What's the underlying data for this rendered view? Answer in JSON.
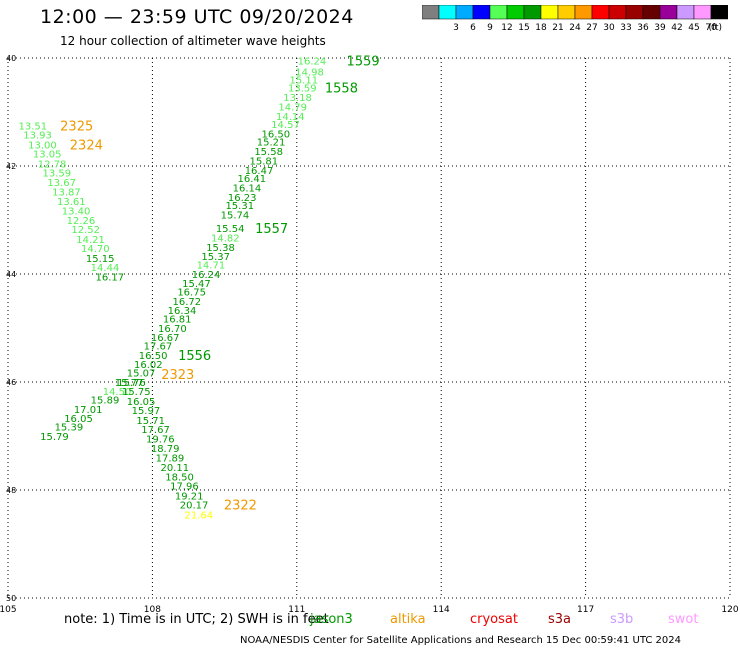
{
  "header": {
    "title": "12:00 — 23:59 UTC 09/20/2024",
    "subtitle": "12 hour collection of altimeter wave heights"
  },
  "legend": {
    "unit": "(ft)",
    "bins": [
      {
        "label": "",
        "color": "#7f7f7f"
      },
      {
        "label": "3",
        "color": "#00ffff"
      },
      {
        "label": "6",
        "color": "#00aaff"
      },
      {
        "label": "9",
        "color": "#0000ff"
      },
      {
        "label": "12",
        "color": "#55ff55"
      },
      {
        "label": "15",
        "color": "#00cc00"
      },
      {
        "label": "18",
        "color": "#009900"
      },
      {
        "label": "21",
        "color": "#ffff00"
      },
      {
        "label": "24",
        "color": "#ffcc00"
      },
      {
        "label": "27",
        "color": "#ff9900"
      },
      {
        "label": "30",
        "color": "#ff0000"
      },
      {
        "label": "33",
        "color": "#cc0000"
      },
      {
        "label": "36",
        "color": "#990000"
      },
      {
        "label": "39",
        "color": "#660000"
      },
      {
        "label": "42",
        "color": "#990099"
      },
      {
        "label": "45",
        "color": "#cc99ff"
      },
      {
        "label": "70",
        "color": "#ff99ff"
      },
      {
        "label": "",
        "color": "#000000"
      }
    ]
  },
  "axes": {
    "lon_labels": [
      "105",
      "108",
      "111",
      "114",
      "117",
      "120"
    ],
    "lat_labels": [
      "40",
      "42",
      "44",
      "46",
      "48",
      "50"
    ],
    "lon_range": [
      105,
      120
    ],
    "lat_range": [
      -40,
      -50
    ]
  },
  "colors": {
    "green_light": "#55ee55",
    "green_dark": "#009900",
    "orange": "#ee9900",
    "yellow": "#ffff00"
  },
  "tracks": [
    {
      "name": "1559",
      "label_lon": 112.2,
      "label_lat": -40.05,
      "color_key": "green_dark",
      "points": [
        {
          "lon": 111.35,
          "lat": -40.05,
          "v": "16.24",
          "c": "green_light"
        },
        {
          "lon": 111.3,
          "lat": -40.25,
          "v": "14.98",
          "c": "green_light"
        },
        {
          "lon": 111.18,
          "lat": -40.4,
          "v": "15.11",
          "c": "green_light"
        }
      ]
    },
    {
      "name": "1558",
      "label_lon": 111.75,
      "label_lat": -40.55,
      "color_key": "green_dark",
      "points": [
        {
          "lon": 111.15,
          "lat": -40.55,
          "v": "13.59",
          "c": "green_light"
        },
        {
          "lon": 111.05,
          "lat": -40.72,
          "v": "13.18",
          "c": "green_light"
        },
        {
          "lon": 110.95,
          "lat": -40.9,
          "v": "14.79",
          "c": "green_light"
        },
        {
          "lon": 110.9,
          "lat": -41.07,
          "v": "14.14",
          "c": "green_light"
        },
        {
          "lon": 110.8,
          "lat": -41.22,
          "v": "14.57",
          "c": "green_light"
        },
        {
          "lon": 110.6,
          "lat": -41.4,
          "v": "16.50",
          "c": "green_dark"
        },
        {
          "lon": 110.5,
          "lat": -41.55,
          "v": "15.21",
          "c": "green_dark"
        },
        {
          "lon": 110.45,
          "lat": -41.72,
          "v": "15.58",
          "c": "green_dark"
        },
        {
          "lon": 110.35,
          "lat": -41.9,
          "v": "15.81",
          "c": "green_dark"
        },
        {
          "lon": 110.25,
          "lat": -42.07,
          "v": "16.47",
          "c": "green_dark"
        },
        {
          "lon": 110.1,
          "lat": -42.22,
          "v": "16.41",
          "c": "green_dark"
        },
        {
          "lon": 110.0,
          "lat": -42.4,
          "v": "16.14",
          "c": "green_dark"
        },
        {
          "lon": 109.9,
          "lat": -42.57,
          "v": "16.23",
          "c": "green_dark"
        },
        {
          "lon": 109.85,
          "lat": -42.72,
          "v": "15.31",
          "c": "green_dark"
        },
        {
          "lon": 109.75,
          "lat": -42.9,
          "v": "15.74",
          "c": "green_dark"
        }
      ]
    },
    {
      "name": "1557",
      "label_lon": 110.3,
      "label_lat": -43.15,
      "color_key": "green_dark",
      "points": [
        {
          "lon": 109.65,
          "lat": -43.15,
          "v": "15.54",
          "c": "green_dark"
        },
        {
          "lon": 109.55,
          "lat": -43.32,
          "v": "14.82",
          "c": "green_light"
        },
        {
          "lon": 109.45,
          "lat": -43.5,
          "v": "15.38",
          "c": "green_dark"
        },
        {
          "lon": 109.35,
          "lat": -43.67,
          "v": "15.37",
          "c": "green_dark"
        },
        {
          "lon": 109.25,
          "lat": -43.82,
          "v": "14.71",
          "c": "green_light"
        },
        {
          "lon": 109.15,
          "lat": -44.0,
          "v": "16.24",
          "c": "green_dark"
        },
        {
          "lon": 108.95,
          "lat": -44.17,
          "v": "15.47",
          "c": "green_dark"
        },
        {
          "lon": 108.85,
          "lat": -44.32,
          "v": "16.75",
          "c": "green_dark"
        },
        {
          "lon": 108.75,
          "lat": -44.5,
          "v": "16.72",
          "c": "green_dark"
        },
        {
          "lon": 108.65,
          "lat": -44.67,
          "v": "16.34",
          "c": "green_dark"
        },
        {
          "lon": 108.55,
          "lat": -44.82,
          "v": "16.81",
          "c": "green_dark"
        },
        {
          "lon": 108.45,
          "lat": -45.0,
          "v": "16.70",
          "c": "green_dark"
        },
        {
          "lon": 108.3,
          "lat": -45.17,
          "v": "16.67",
          "c": "green_dark"
        },
        {
          "lon": 108.15,
          "lat": -45.32,
          "v": "17.67",
          "c": "green_dark"
        }
      ]
    },
    {
      "name": "1556",
      "label_lon": 108.7,
      "label_lat": -45.5,
      "color_key": "green_dark",
      "points": [
        {
          "lon": 108.05,
          "lat": -45.5,
          "v": "16.50",
          "c": "green_dark"
        },
        {
          "lon": 107.95,
          "lat": -45.67,
          "v": "16.02",
          "c": "green_dark"
        },
        {
          "lon": 107.8,
          "lat": -45.82,
          "v": "15.07",
          "c": "green_dark"
        },
        {
          "lon": 107.55,
          "lat": -46.0,
          "v": "15.77",
          "c": "green_dark"
        },
        {
          "lon": 107.3,
          "lat": -46.17,
          "v": "14.50",
          "c": "green_light"
        },
        {
          "lon": 107.05,
          "lat": -46.32,
          "v": "15.89",
          "c": "green_dark"
        },
        {
          "lon": 106.7,
          "lat": -46.5,
          "v": "17.01",
          "c": "green_dark"
        },
        {
          "lon": 106.5,
          "lat": -46.67,
          "v": "16.05",
          "c": "green_dark"
        },
        {
          "lon": 106.3,
          "lat": -46.82,
          "v": "15.39",
          "c": "green_dark"
        },
        {
          "lon": 106.0,
          "lat": -47.0,
          "v": "15.79",
          "c": "green_dark"
        }
      ]
    },
    {
      "name": "2325",
      "label_lon": 106.25,
      "label_lat": -41.25,
      "color_key": "orange",
      "points": [
        {
          "lon": 105.55,
          "lat": -41.25,
          "v": "13.51",
          "c": "green_light"
        },
        {
          "lon": 105.65,
          "lat": -41.42,
          "v": "13.93",
          "c": "green_light"
        },
        {
          "lon": 105.75,
          "lat": -41.6,
          "v": "13.00",
          "c": "green_light"
        }
      ]
    },
    {
      "name": "2324",
      "label_lon": 106.45,
      "label_lat": -41.6,
      "color_key": "orange",
      "points": [
        {
          "lon": 105.85,
          "lat": -41.77,
          "v": "13.05",
          "c": "green_light"
        },
        {
          "lon": 105.95,
          "lat": -41.95,
          "v": "12.78",
          "c": "green_light"
        },
        {
          "lon": 106.05,
          "lat": -42.12,
          "v": "13.59",
          "c": "green_light"
        },
        {
          "lon": 106.15,
          "lat": -42.3,
          "v": "13.67",
          "c": "green_light"
        },
        {
          "lon": 106.25,
          "lat": -42.47,
          "v": "13.87",
          "c": "green_light"
        },
        {
          "lon": 106.35,
          "lat": -42.65,
          "v": "13.61",
          "c": "green_light"
        },
        {
          "lon": 106.45,
          "lat": -42.82,
          "v": "13.40",
          "c": "green_light"
        },
        {
          "lon": 106.55,
          "lat": -43.0,
          "v": "12.26",
          "c": "green_light"
        },
        {
          "lon": 106.65,
          "lat": -43.17,
          "v": "12.52",
          "c": "green_light"
        },
        {
          "lon": 106.75,
          "lat": -43.35,
          "v": "14.21",
          "c": "green_light"
        },
        {
          "lon": 106.85,
          "lat": -43.52,
          "v": "14.70",
          "c": "green_light"
        },
        {
          "lon": 106.95,
          "lat": -43.7,
          "v": "15.15",
          "c": "green_dark"
        },
        {
          "lon": 107.05,
          "lat": -43.87,
          "v": "14.44",
          "c": "green_light"
        },
        {
          "lon": 107.15,
          "lat": -44.05,
          "v": "16.17",
          "c": "green_dark"
        }
      ]
    },
    {
      "name": "2323",
      "label_lon": 108.35,
      "label_lat": -45.85,
      "color_key": "orange",
      "points": [
        {
          "lon": 107.6,
          "lat": -46.0,
          "v": "15.76",
          "c": "green_dark"
        },
        {
          "lon": 107.7,
          "lat": -46.17,
          "v": "15.75",
          "c": "green_dark"
        },
        {
          "lon": 107.8,
          "lat": -46.35,
          "v": "16.05",
          "c": "green_dark"
        },
        {
          "lon": 107.9,
          "lat": -46.52,
          "v": "15.97",
          "c": "green_dark"
        },
        {
          "lon": 108.0,
          "lat": -46.7,
          "v": "15.71",
          "c": "green_dark"
        },
        {
          "lon": 108.1,
          "lat": -46.87,
          "v": "17.67",
          "c": "green_dark"
        },
        {
          "lon": 108.2,
          "lat": -47.05,
          "v": "19.76",
          "c": "green_dark"
        },
        {
          "lon": 108.3,
          "lat": -47.22,
          "v": "18.79",
          "c": "green_dark"
        },
        {
          "lon": 108.4,
          "lat": -47.4,
          "v": "17.89",
          "c": "green_dark"
        },
        {
          "lon": 108.5,
          "lat": -47.57,
          "v": "20.11",
          "c": "green_dark"
        },
        {
          "lon": 108.6,
          "lat": -47.75,
          "v": "18.50",
          "c": "green_dark"
        },
        {
          "lon": 108.7,
          "lat": -47.92,
          "v": "17.96",
          "c": "green_dark"
        },
        {
          "lon": 108.8,
          "lat": -48.1,
          "v": "19.21",
          "c": "green_dark"
        },
        {
          "lon": 108.9,
          "lat": -48.27,
          "v": "20.17",
          "c": "green_dark"
        }
      ]
    },
    {
      "name": "2322",
      "label_lon": 109.65,
      "label_lat": -48.27,
      "color_key": "orange",
      "points": [
        {
          "lon": 109.0,
          "lat": -48.45,
          "v": "21.64",
          "c": "yellow"
        }
      ]
    }
  ],
  "notes": "note:  1) Time is in UTC;  2) SWH is in feet",
  "satellites": [
    {
      "name": "jason3",
      "color": "#009900"
    },
    {
      "name": "altika",
      "color": "#ee9900"
    },
    {
      "name": "cryosat",
      "color": "#ee0000"
    },
    {
      "name": "s3a",
      "color": "#990000"
    },
    {
      "name": "s3b",
      "color": "#cc99ff"
    },
    {
      "name": "swot",
      "color": "#ff99ff"
    }
  ],
  "credit": "NOAA/NESDIS Center for Satellite Applications and Research    15 Dec 00:59:41 UTC 2024"
}
